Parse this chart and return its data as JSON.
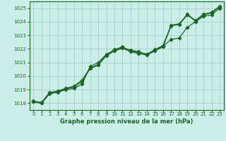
{
  "title": "Graphe pression niveau de la mer (hPa)",
  "background_color": "#cceee8",
  "grid_color": "#aad4ce",
  "line_color": "#1a6620",
  "x_ticks": [
    0,
    1,
    2,
    3,
    4,
    5,
    6,
    7,
    8,
    9,
    10,
    11,
    12,
    13,
    14,
    15,
    16,
    17,
    18,
    19,
    20,
    21,
    22,
    23
  ],
  "y_ticks": [
    1018,
    1019,
    1020,
    1021,
    1022,
    1023,
    1024,
    1025
  ],
  "ylim": [
    1017.5,
    1025.5
  ],
  "xlim": [
    -0.5,
    23.5
  ],
  "line1": [
    1018.1,
    1018.0,
    1018.7,
    1018.8,
    1019.0,
    1019.1,
    1019.4,
    1020.7,
    1021.0,
    1021.6,
    1021.9,
    1022.1,
    1021.9,
    1021.8,
    1021.6,
    1021.9,
    1022.2,
    1022.7,
    1022.8,
    1023.6,
    1024.0,
    1024.4,
    1024.5,
    1025.0
  ],
  "line2": [
    1018.1,
    1018.0,
    1018.75,
    1018.85,
    1019.05,
    1019.2,
    1019.6,
    1020.55,
    1020.8,
    1021.5,
    1021.85,
    1022.05,
    1021.8,
    1021.65,
    1021.55,
    1021.85,
    1022.15,
    1023.7,
    1023.8,
    1024.5,
    1024.05,
    1024.5,
    1024.65,
    1025.1
  ],
  "line3": [
    1018.15,
    1018.05,
    1018.8,
    1018.9,
    1019.1,
    1019.25,
    1019.7,
    1020.6,
    1020.85,
    1021.55,
    1021.95,
    1022.15,
    1021.85,
    1021.75,
    1021.6,
    1021.95,
    1022.25,
    1023.75,
    1023.85,
    1024.55,
    1024.1,
    1024.55,
    1024.7,
    1025.15
  ]
}
